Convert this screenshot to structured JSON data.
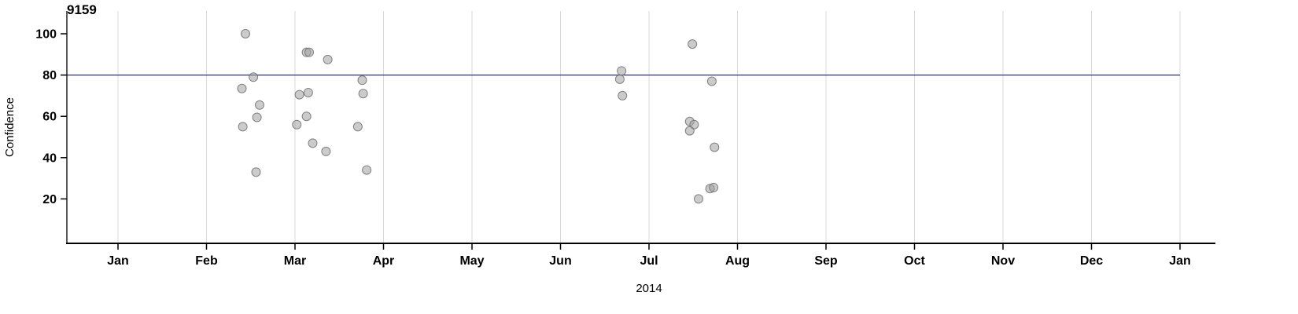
{
  "chart_data": {
    "type": "scatter",
    "title": "9159",
    "xlabel": "2014",
    "ylabel": "Confidence",
    "x_tick_labels": [
      "Jan",
      "Feb",
      "Mar",
      "Apr",
      "May",
      "Jun",
      "Jul",
      "Aug",
      "Sep",
      "Oct",
      "Nov",
      "Dec",
      "Jan"
    ],
    "y_ticks": [
      20,
      40,
      60,
      80,
      100
    ],
    "xlim_months": [
      0,
      12
    ],
    "ylim": [
      0,
      105
    ],
    "grid": "vertical-month-lines",
    "reference_line": {
      "y": 80
    },
    "points": [
      {
        "x": 1.44,
        "y": 100
      },
      {
        "x": 1.4,
        "y": 73.5
      },
      {
        "x": 1.41,
        "y": 55
      },
      {
        "x": 1.53,
        "y": 79
      },
      {
        "x": 1.6,
        "y": 65.5
      },
      {
        "x": 1.57,
        "y": 59.5
      },
      {
        "x": 1.56,
        "y": 33
      },
      {
        "x": 2.13,
        "y": 91
      },
      {
        "x": 2.16,
        "y": 91
      },
      {
        "x": 2.05,
        "y": 70.5
      },
      {
        "x": 2.15,
        "y": 71.5
      },
      {
        "x": 2.02,
        "y": 56
      },
      {
        "x": 2.13,
        "y": 60
      },
      {
        "x": 2.2,
        "y": 47
      },
      {
        "x": 2.37,
        "y": 87.5
      },
      {
        "x": 2.35,
        "y": 43
      },
      {
        "x": 2.76,
        "y": 77.5
      },
      {
        "x": 2.77,
        "y": 71
      },
      {
        "x": 2.71,
        "y": 55
      },
      {
        "x": 2.81,
        "y": 34
      },
      {
        "x": 5.69,
        "y": 82
      },
      {
        "x": 5.67,
        "y": 78
      },
      {
        "x": 5.7,
        "y": 70
      },
      {
        "x": 6.49,
        "y": 95
      },
      {
        "x": 6.46,
        "y": 57.5
      },
      {
        "x": 6.51,
        "y": 56
      },
      {
        "x": 6.46,
        "y": 53
      },
      {
        "x": 6.71,
        "y": 77
      },
      {
        "x": 6.74,
        "y": 45
      },
      {
        "x": 6.69,
        "y": 25
      },
      {
        "x": 6.73,
        "y": 25.5
      },
      {
        "x": 6.56,
        "y": 20
      }
    ],
    "colors": {
      "axis": "#000000",
      "grid": "#d9d9d9",
      "ref_line": "#2d2d8c",
      "point_fill": "#a0a0a0",
      "point_stroke": "#707070",
      "background": "#ffffff"
    },
    "point_style": {
      "radius": 5.5,
      "fill_opacity": 0.55,
      "stroke_opacity": 0.85
    }
  }
}
